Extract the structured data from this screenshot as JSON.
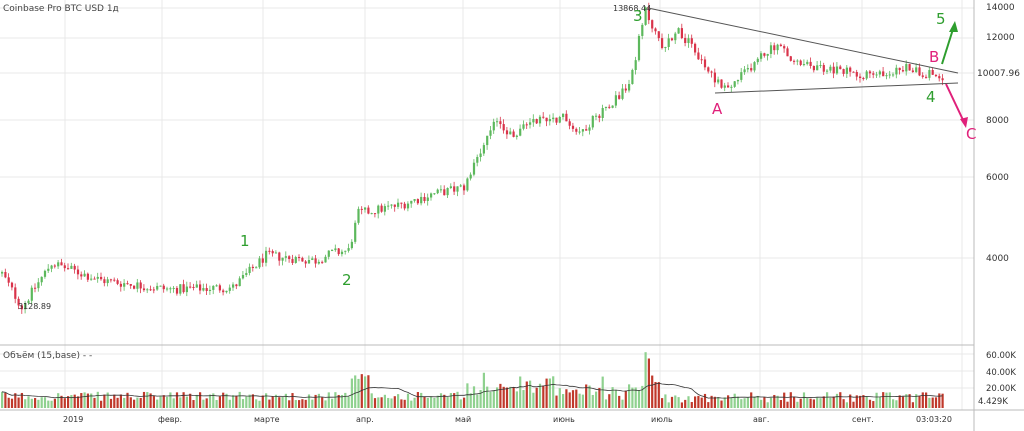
{
  "chart_data": {
    "type": "candlestick",
    "title": "Coinbase Pro BTC USD 1д",
    "volume_title": "Объём (15,base) - -",
    "price_axis": {
      "scale": "log",
      "ticks": [
        4000,
        6000,
        8000,
        10000,
        12000,
        14000
      ],
      "tick_labels": [
        "4000",
        "6000",
        "8000",
        "10007.96",
        "12000",
        "14000"
      ],
      "last_price_label": "10007.96"
    },
    "volume_axis": {
      "ticks": [
        4.429,
        20,
        40,
        60
      ],
      "tick_labels": [
        "4.429K",
        "20.00K",
        "40.00K",
        "60.00K"
      ]
    },
    "date_axis": {
      "tick_labels": [
        "2019",
        "февр.",
        "марте",
        "апр.",
        "май",
        "июнь",
        "июль",
        "авг.",
        "сент."
      ],
      "time_label": "03:03:20"
    },
    "price_labels": {
      "low": "3128.89",
      "high": "13868.44"
    },
    "annotations": {
      "wave_1": "1",
      "wave_2": "2",
      "wave_3": "3",
      "wave_4": "4",
      "wave_5": "5",
      "point_a": "A",
      "point_b": "B",
      "point_c": "C"
    },
    "colors": {
      "up": "#5cb85c",
      "down": "#d9334a",
      "wave_green": "#2e9e2e",
      "abc_pink": "#e0207a",
      "volume_ma": "#333333",
      "grid": "#e8e8e8"
    },
    "grid": true
  }
}
